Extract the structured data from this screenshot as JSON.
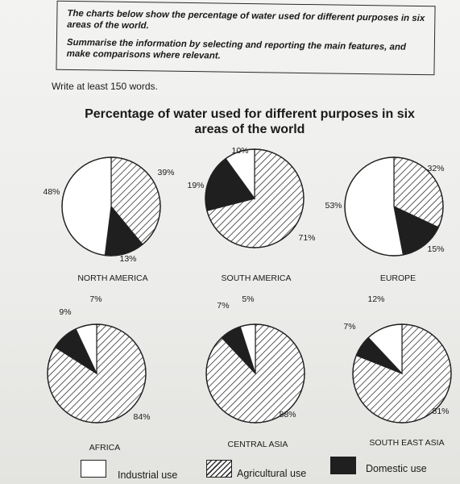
{
  "task": {
    "line1": "The charts below show the percentage of water used for different purposes in six areas of the world.",
    "line2": "Summarise the information by selecting and reporting the main features, and make comparisons where relevant."
  },
  "instruction": "Write at least 150 words.",
  "chart_data": {
    "type": "pie",
    "title": "Percentage of water used for different purposes in six areas of the world",
    "categories": [
      "Industrial use",
      "Agricultural use",
      "Domestic use"
    ],
    "charts": [
      {
        "name": "NORTH AMERICA",
        "industrial": 48,
        "agricultural": 39,
        "domestic": 13,
        "labels": {
          "industrial": "48%",
          "agricultural": "39%",
          "domestic": "13%"
        }
      },
      {
        "name": "SOUTH AMERICA",
        "industrial": 10,
        "agricultural": 71,
        "domestic": 19,
        "labels": {
          "industrial": "10%",
          "agricultural": "71%",
          "domestic": "19%"
        }
      },
      {
        "name": "EUROPE",
        "industrial": 53,
        "agricultural": 32,
        "domestic": 15,
        "labels": {
          "industrial": "53%",
          "agricultural": "32%",
          "domestic": "15%"
        }
      },
      {
        "name": "AFRICA",
        "industrial": 7,
        "agricultural": 84,
        "domestic": 9,
        "labels": {
          "industrial": "7%",
          "agricultural": "84%",
          "domestic": "9%"
        }
      },
      {
        "name": "CENTRAL ASIA",
        "industrial": 5,
        "agricultural": 88,
        "domestic": 7,
        "labels": {
          "industrial": "5%",
          "agricultural": "88%",
          "domestic": "7%"
        }
      },
      {
        "name": "SOUTH EAST ASIA",
        "industrial": 12,
        "agricultural": 81,
        "domestic": 7,
        "labels": {
          "industrial": "12%",
          "agricultural": "81%",
          "domestic": "7%"
        }
      }
    ],
    "legend": [
      "Industrial use",
      "Agricultural use",
      "Domestic use"
    ],
    "colors": {
      "industrial": "#ffffff",
      "agricultural_hatch": "#333333",
      "domestic": "#1f1f1f"
    }
  }
}
